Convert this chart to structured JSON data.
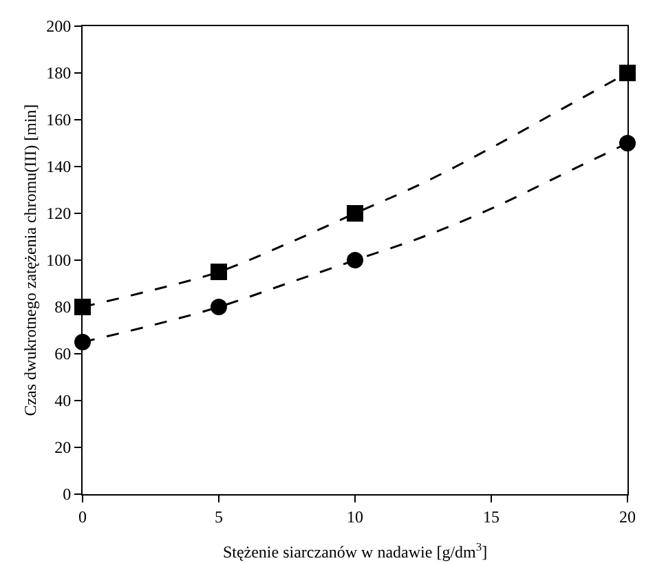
{
  "chart_data": {
    "type": "scatter",
    "xlabel": "Stężenie siarczanów w nadawie [g/dm$^{3}$]",
    "ylabel": "Czas dwukrotnego zatężenia chromu(III) [min]",
    "xlim": [
      0,
      20
    ],
    "xticks": [
      0,
      5,
      10,
      15,
      20
    ],
    "ylim": [
      0,
      200
    ],
    "yticks": [
      0,
      20,
      40,
      60,
      80,
      100,
      120,
      140,
      160,
      180,
      200
    ],
    "series": [
      {
        "type": "line",
        "color": "#000000",
        "line_style": "dashed",
        "marker": "none",
        "x": [
          0,
          2.5,
          5,
          7.5,
          10,
          12.5,
          15,
          17.5,
          20
        ],
        "values": [
          80,
          87,
          95,
          107,
          120,
          133,
          148,
          164,
          180
        ]
      },
      {
        "type": "line",
        "color": "#000000",
        "line_style": "dashed",
        "marker": "none",
        "x": [
          0,
          2.5,
          5,
          7.5,
          10,
          12.5,
          15,
          17.5,
          20
        ],
        "values": [
          65,
          72,
          80,
          90,
          100,
          110,
          122,
          136,
          150
        ]
      },
      {
        "color": "#000000",
        "marker": "square",
        "x": [
          0,
          5,
          10,
          20
        ],
        "values": [
          80,
          95,
          120,
          180
        ]
      },
      {
        "color": "#000000",
        "marker": "circle",
        "x": [
          0,
          5,
          10,
          20
        ],
        "values": [
          65,
          80,
          100,
          150
        ]
      }
    ]
  }
}
